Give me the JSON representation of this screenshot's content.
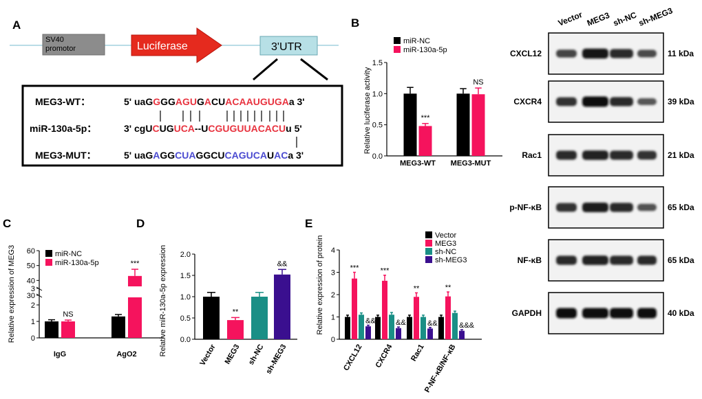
{
  "panels": {
    "A": "A",
    "B": "B",
    "C": "C",
    "D": "D",
    "E": "E"
  },
  "construct": {
    "promoter": "SV40\npromotor",
    "luciferase": "Luciferase",
    "utr": "3'UTR"
  },
  "sequences": {
    "wt_label": "MEG3-WT：",
    "wt_seq": [
      [
        "5' uaG",
        "#000"
      ],
      [
        "G",
        "#e8333f"
      ],
      [
        "GG",
        "#000"
      ],
      [
        "AGU",
        "#e8333f"
      ],
      [
        "G",
        "#000"
      ],
      [
        "A",
        "#e8333f"
      ],
      [
        "CU",
        "#000"
      ],
      [
        "ACAAUGUGA",
        "#e8333f"
      ],
      [
        "a 3'",
        "#000"
      ]
    ],
    "mir_label": "miR-130a-5p：",
    "mir_seq": [
      [
        "3' cgU",
        "#000"
      ],
      [
        "C",
        "#e8333f"
      ],
      [
        "UG",
        "#000"
      ],
      [
        "UCA",
        "#e8333f"
      ],
      [
        "--U",
        "#000"
      ],
      [
        "CG",
        "#e8333f"
      ],
      [
        "UGUUACACU",
        "#e8333f"
      ],
      [
        "u 5'",
        "#000"
      ]
    ],
    "mut_label": "MEG3-MUT：",
    "mut_seq": [
      [
        "5' uaG",
        "#000"
      ],
      [
        "A",
        "#4a4ad0"
      ],
      [
        "GG",
        "#000"
      ],
      [
        "CUA",
        "#4a4ad0"
      ],
      [
        "GG",
        "#000"
      ],
      [
        "CU",
        "#000"
      ],
      [
        "CAGUCA",
        "#4a4ad0"
      ],
      [
        "U",
        "#000"
      ],
      [
        "AC",
        "#4a4ad0"
      ],
      [
        "a 3'",
        "#000"
      ]
    ]
  },
  "colors": {
    "black": "#000000",
    "pink": "#f5135d",
    "teal": "#1a8f86",
    "purple": "#3a0f8f"
  },
  "chart_data": [
    {
      "id": "B",
      "type": "bar",
      "title": "",
      "ylabel": "Relative luciferase activity",
      "xlabel": "",
      "ylim": [
        0,
        1.5
      ],
      "yticks": [
        "0.0",
        "0.5",
        "1.0",
        "1.5"
      ],
      "categories": [
        "MEG3-WT",
        "MEG3-MUT"
      ],
      "series": [
        {
          "name": "miR-NC",
          "values": [
            1.0,
            1.0
          ],
          "errors": [
            0.1,
            0.08
          ]
        },
        {
          "name": "miR-130a-5p",
          "values": [
            0.48,
            0.99
          ],
          "errors": [
            0.04,
            0.1
          ]
        }
      ],
      "annotations": [
        {
          "category": "MEG3-WT",
          "series": "miR-130a-5p",
          "text": "***"
        },
        {
          "category": "MEG3-MUT",
          "series": "miR-130a-5p",
          "text": "NS"
        }
      ]
    },
    {
      "id": "C",
      "type": "bar",
      "title": "",
      "ylabel": "Relative expression of MEG3",
      "xlabel": "",
      "yticks_low": [
        "0",
        "1",
        "2",
        "3"
      ],
      "yticks_high": [
        "30",
        "40",
        "50",
        "60"
      ],
      "axis_break": [
        3,
        30
      ],
      "categories": [
        "IgG",
        "AgO2"
      ],
      "series": [
        {
          "name": "miR-NC",
          "values": [
            1.0,
            1.3
          ],
          "errors": [
            0.1,
            0.12
          ]
        },
        {
          "name": "miR-130a-5p",
          "values": [
            1.0,
            43
          ],
          "errors": [
            0.08,
            4.5
          ]
        }
      ],
      "annotations": [
        {
          "category": "IgG",
          "series": "miR-130a-5p",
          "text": "NS"
        },
        {
          "category": "AgO2",
          "series": "miR-130a-5p",
          "text": "***"
        }
      ]
    },
    {
      "id": "D",
      "type": "bar",
      "title": "",
      "ylabel": "Relative miR-130a-5p expression",
      "xlabel": "",
      "ylim": [
        0,
        2.0
      ],
      "yticks": [
        "0.0",
        "0.5",
        "1.0",
        "1.5",
        "2.0"
      ],
      "categories": [
        "Vector",
        "MEG3",
        "sh-NC",
        "sh-MEG3"
      ],
      "values": [
        1.0,
        0.45,
        1.0,
        1.52
      ],
      "errors": [
        0.1,
        0.06,
        0.1,
        0.12
      ],
      "annotations": [
        "",
        "**",
        "",
        "&&"
      ]
    },
    {
      "id": "E",
      "type": "bar",
      "title": "",
      "ylabel": "Relative expression of  protein",
      "xlabel": "",
      "ylim": [
        0,
        4
      ],
      "yticks": [
        "0",
        "1",
        "2",
        "3",
        "4"
      ],
      "categories": [
        "CXCL12",
        "CXCR4",
        "Rac1",
        "P-NF-κB/NF-κB"
      ],
      "series": [
        {
          "name": "Vector",
          "values": [
            1.0,
            1.0,
            1.0,
            1.0
          ],
          "errors": [
            0.08,
            0.08,
            0.08,
            0.08
          ]
        },
        {
          "name": "MEG3",
          "values": [
            2.72,
            2.62,
            1.9,
            1.92
          ],
          "errors": [
            0.28,
            0.25,
            0.18,
            0.2
          ]
        },
        {
          "name": "sh-NC",
          "values": [
            1.1,
            1.1,
            1.0,
            1.18
          ],
          "errors": [
            0.08,
            0.1,
            0.08,
            0.08
          ]
        },
        {
          "name": "sh-MEG3",
          "values": [
            0.58,
            0.5,
            0.48,
            0.38
          ],
          "errors": [
            0.05,
            0.05,
            0.05,
            0.05
          ]
        }
      ],
      "annotations": [
        {
          "category": "CXCL12",
          "series": "MEG3",
          "text": "***"
        },
        {
          "category": "CXCL12",
          "series": "sh-MEG3",
          "text": "&&"
        },
        {
          "category": "CXCR4",
          "series": "MEG3",
          "text": "***"
        },
        {
          "category": "CXCR4",
          "series": "sh-MEG3",
          "text": "&&"
        },
        {
          "category": "Rac1",
          "series": "MEG3",
          "text": "**"
        },
        {
          "category": "Rac1",
          "series": "sh-MEG3",
          "text": "&&"
        },
        {
          "category": "P-NF-κB/NF-κB",
          "series": "MEG3",
          "text": "**"
        },
        {
          "category": "P-NF-κB/NF-κB",
          "series": "sh-MEG3",
          "text": "&&&"
        }
      ]
    }
  ],
  "western": {
    "lanes": [
      "Vector",
      "MEG3",
      "sh-NC",
      "sh-MEG3"
    ],
    "rows": [
      {
        "label": "CXCL12",
        "kda": "11 kDa",
        "intensity": [
          0.6,
          0.95,
          0.8,
          0.55
        ]
      },
      {
        "label": "CXCR4",
        "kda": "39 kDa",
        "intensity": [
          0.75,
          1.0,
          0.8,
          0.45
        ]
      },
      {
        "label": "Rac1",
        "kda": "21 kDa",
        "intensity": [
          0.8,
          0.85,
          0.8,
          0.75
        ]
      },
      {
        "label": "p-NF-κB",
        "kda": "65 kDa",
        "intensity": [
          0.75,
          0.9,
          0.8,
          0.5
        ]
      },
      {
        "label": "NF-κB",
        "kda": "65 kDa",
        "intensity": [
          0.8,
          0.85,
          0.8,
          0.8
        ]
      },
      {
        "label": "GAPDH",
        "kda": "40 kDa",
        "intensity": [
          1.0,
          1.0,
          1.0,
          1.0
        ]
      }
    ]
  }
}
